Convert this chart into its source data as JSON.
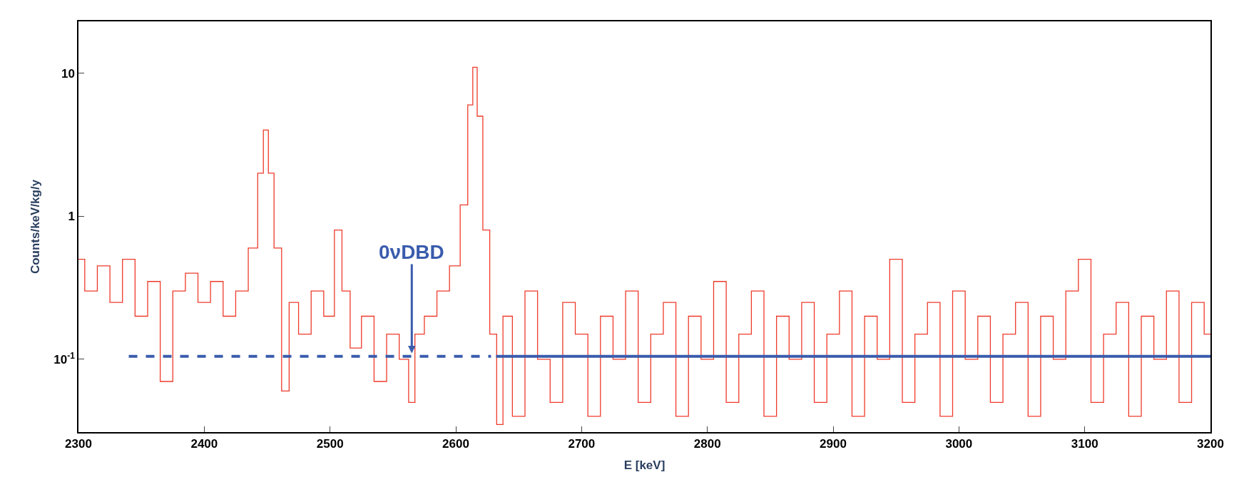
{
  "chart_data": {
    "type": "step",
    "xlabel": "E [keV]",
    "ylabel": "Counts/keV/kg/y",
    "xlim": [
      2300,
      3200
    ],
    "xticks": [
      2300,
      2400,
      2500,
      2600,
      2700,
      2800,
      2900,
      3000,
      3100,
      3200
    ],
    "ylim": [
      0.031,
      23
    ],
    "yticks": [
      {
        "value": 0.1,
        "label": "10$^{-1}$"
      },
      1,
      10
    ],
    "log": true,
    "legend": false,
    "marker": "none",
    "annotations": [
      {
        "text": "0νDBD",
        "x": 2565,
        "y": 0.11
      }
    ],
    "series": [
      {
        "color": "#ee3b2b",
        "x": [
          2300,
          2310,
          2320,
          2330,
          2340,
          2350,
          2360,
          2370,
          2380,
          2390,
          2400,
          2410,
          2420,
          2430,
          2440,
          2445,
          2449,
          2453,
          2458,
          2465,
          2470,
          2480,
          2490,
          2500,
          2507,
          2512,
          2520,
          2530,
          2540,
          2550,
          2560,
          2565,
          2570,
          2580,
          2590,
          2600,
          2607,
          2612,
          2615,
          2619,
          2624,
          2630,
          2635,
          2640,
          2650,
          2660,
          2670,
          2680,
          2690,
          2700,
          2710,
          2720,
          2730,
          2740,
          2750,
          2760,
          2770,
          2780,
          2790,
          2800,
          2810,
          2820,
          2830,
          2840,
          2850,
          2860,
          2870,
          2880,
          2890,
          2900,
          2910,
          2920,
          2930,
          2940,
          2950,
          2960,
          2970,
          2980,
          2990,
          3000,
          3010,
          3020,
          3030,
          3040,
          3050,
          3060,
          3070,
          3080,
          3090,
          3100,
          3110,
          3120,
          3130,
          3140,
          3150,
          3160,
          3170,
          3180,
          3190,
          3200
        ],
        "values": [
          0.5,
          0.3,
          0.45,
          0.25,
          0.5,
          0.2,
          0.35,
          0.07,
          0.3,
          0.4,
          0.25,
          0.35,
          0.2,
          0.3,
          0.6,
          2.0,
          4.0,
          2.0,
          0.6,
          0.06,
          0.25,
          0.15,
          0.3,
          0.2,
          0.8,
          0.3,
          0.12,
          0.2,
          0.07,
          0.15,
          0.1,
          0.05,
          0.15,
          0.2,
          0.3,
          0.45,
          1.2,
          6,
          11,
          5,
          0.8,
          0.15,
          0.035,
          0.2,
          0.04,
          0.3,
          0.1,
          0.05,
          0.25,
          0.15,
          0.04,
          0.2,
          0.1,
          0.3,
          0.05,
          0.15,
          0.25,
          0.04,
          0.2,
          0.1,
          0.35,
          0.05,
          0.15,
          0.3,
          0.04,
          0.2,
          0.1,
          0.25,
          0.05,
          0.15,
          0.3,
          0.04,
          0.2,
          0.1,
          0.5,
          0.05,
          0.15,
          0.25,
          0.04,
          0.3,
          0.1,
          0.2,
          0.05,
          0.15,
          0.25,
          0.04,
          0.2,
          0.1,
          0.3,
          0.5,
          0.05,
          0.15,
          0.25,
          0.04,
          0.2,
          0.1,
          0.3,
          0.05,
          0.25,
          0.15
        ]
      },
      {
        "type": "line",
        "color": "#3a5cad",
        "line_style": "dashed",
        "x": [
          2340,
          2628
        ],
        "values": [
          0.105,
          0.105
        ]
      },
      {
        "type": "line",
        "color": "#3a5cad",
        "line_style": "solid",
        "x": [
          2632,
          3200
        ],
        "values": [
          0.105,
          0.105
        ]
      }
    ]
  }
}
